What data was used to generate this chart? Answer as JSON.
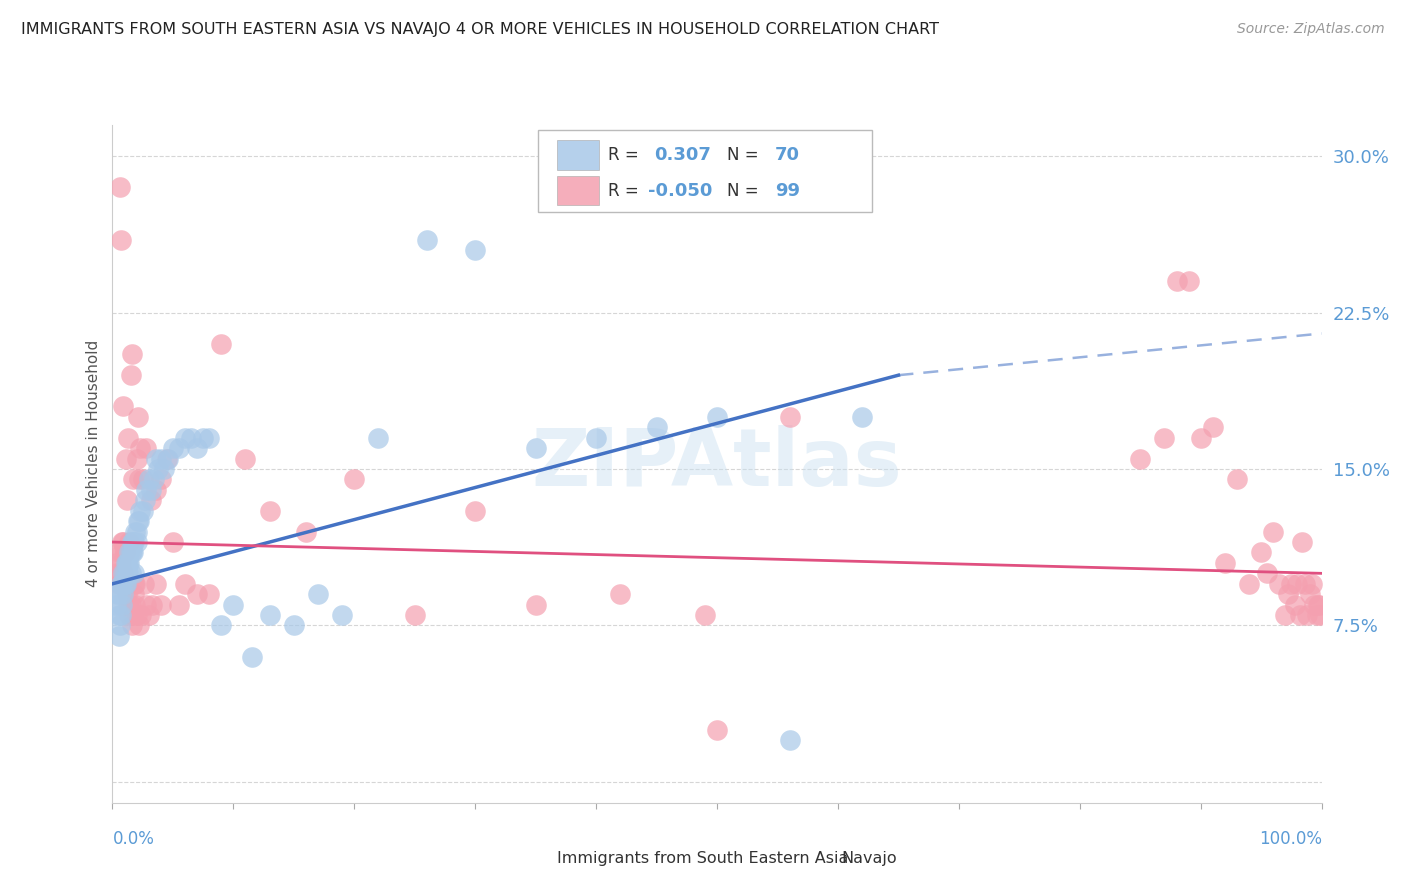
{
  "title": "IMMIGRANTS FROM SOUTH EASTERN ASIA VS NAVAJO 4 OR MORE VEHICLES IN HOUSEHOLD CORRELATION CHART",
  "source": "Source: ZipAtlas.com",
  "ylabel": "4 or more Vehicles in Household",
  "ytick_vals": [
    0.0,
    0.075,
    0.15,
    0.225,
    0.3
  ],
  "ytick_labels": [
    "",
    "7.5%",
    "15.0%",
    "22.5%",
    "30.0%"
  ],
  "xlim": [
    0.0,
    1.0
  ],
  "ylim": [
    -0.01,
    0.315
  ],
  "blue_color": "#a8c8e8",
  "pink_color": "#f4a0b0",
  "blue_line_color": "#4472c4",
  "pink_line_color": "#e05080",
  "title_color": "#222222",
  "axis_label_color": "#5b9bd5",
  "blue_trend": [
    0.0,
    0.095,
    0.65,
    0.195
  ],
  "blue_dashed": [
    0.65,
    0.195,
    1.0,
    0.215
  ],
  "pink_trend": [
    0.0,
    0.115,
    1.0,
    0.1
  ],
  "blue_x": [
    0.003,
    0.004,
    0.005,
    0.005,
    0.006,
    0.006,
    0.007,
    0.007,
    0.008,
    0.008,
    0.009,
    0.009,
    0.01,
    0.01,
    0.011,
    0.011,
    0.012,
    0.012,
    0.013,
    0.013,
    0.014,
    0.014,
    0.015,
    0.015,
    0.016,
    0.016,
    0.017,
    0.017,
    0.018,
    0.018,
    0.019,
    0.02,
    0.02,
    0.021,
    0.022,
    0.023,
    0.025,
    0.027,
    0.028,
    0.03,
    0.032,
    0.034,
    0.036,
    0.038,
    0.04,
    0.043,
    0.046,
    0.05,
    0.055,
    0.06,
    0.065,
    0.07,
    0.075,
    0.08,
    0.09,
    0.1,
    0.115,
    0.13,
    0.15,
    0.17,
    0.19,
    0.22,
    0.26,
    0.3,
    0.35,
    0.4,
    0.45,
    0.5,
    0.56,
    0.62
  ],
  "blue_y": [
    0.085,
    0.09,
    0.07,
    0.08,
    0.075,
    0.09,
    0.08,
    0.095,
    0.085,
    0.095,
    0.09,
    0.1,
    0.095,
    0.1,
    0.095,
    0.105,
    0.1,
    0.105,
    0.1,
    0.105,
    0.11,
    0.105,
    0.11,
    0.1,
    0.115,
    0.11,
    0.11,
    0.115,
    0.1,
    0.115,
    0.12,
    0.115,
    0.12,
    0.125,
    0.125,
    0.13,
    0.13,
    0.135,
    0.14,
    0.145,
    0.14,
    0.145,
    0.155,
    0.15,
    0.155,
    0.15,
    0.155,
    0.16,
    0.16,
    0.165,
    0.165,
    0.16,
    0.165,
    0.165,
    0.075,
    0.085,
    0.06,
    0.08,
    0.075,
    0.09,
    0.08,
    0.165,
    0.26,
    0.255,
    0.16,
    0.165,
    0.17,
    0.175,
    0.02,
    0.175
  ],
  "pink_x": [
    0.003,
    0.004,
    0.005,
    0.005,
    0.006,
    0.006,
    0.007,
    0.007,
    0.008,
    0.008,
    0.009,
    0.009,
    0.01,
    0.01,
    0.011,
    0.012,
    0.013,
    0.014,
    0.015,
    0.016,
    0.017,
    0.018,
    0.019,
    0.02,
    0.021,
    0.022,
    0.023,
    0.025,
    0.028,
    0.032,
    0.036,
    0.04,
    0.045,
    0.05,
    0.055,
    0.06,
    0.07,
    0.08,
    0.09,
    0.11,
    0.13,
    0.16,
    0.2,
    0.25,
    0.3,
    0.35,
    0.42,
    0.5,
    0.49,
    0.56,
    0.85,
    0.87,
    0.88,
    0.89,
    0.9,
    0.91,
    0.92,
    0.93,
    0.94,
    0.95,
    0.955,
    0.96,
    0.965,
    0.97,
    0.972,
    0.975,
    0.978,
    0.98,
    0.982,
    0.984,
    0.986,
    0.988,
    0.99,
    0.992,
    0.994,
    0.996,
    0.997,
    0.998,
    0.999,
    0.009,
    0.01,
    0.011,
    0.012,
    0.013,
    0.014,
    0.015,
    0.016,
    0.017,
    0.018,
    0.019,
    0.02,
    0.022,
    0.024,
    0.026,
    0.028,
    0.03,
    0.033,
    0.036,
    0.04
  ],
  "pink_y": [
    0.105,
    0.1,
    0.095,
    0.11,
    0.1,
    0.285,
    0.26,
    0.105,
    0.11,
    0.115,
    0.18,
    0.115,
    0.11,
    0.11,
    0.155,
    0.135,
    0.165,
    0.115,
    0.195,
    0.205,
    0.145,
    0.095,
    0.095,
    0.155,
    0.175,
    0.145,
    0.16,
    0.145,
    0.16,
    0.135,
    0.14,
    0.145,
    0.155,
    0.115,
    0.085,
    0.095,
    0.09,
    0.09,
    0.21,
    0.155,
    0.13,
    0.12,
    0.145,
    0.08,
    0.13,
    0.085,
    0.09,
    0.025,
    0.08,
    0.175,
    0.155,
    0.165,
    0.24,
    0.24,
    0.165,
    0.17,
    0.105,
    0.145,
    0.095,
    0.11,
    0.1,
    0.12,
    0.095,
    0.08,
    0.09,
    0.095,
    0.085,
    0.095,
    0.08,
    0.115,
    0.095,
    0.08,
    0.09,
    0.095,
    0.085,
    0.08,
    0.085,
    0.085,
    0.08,
    0.1,
    0.095,
    0.095,
    0.09,
    0.085,
    0.08,
    0.085,
    0.075,
    0.08,
    0.09,
    0.085,
    0.08,
    0.075,
    0.08,
    0.095,
    0.085,
    0.08,
    0.085,
    0.095,
    0.085
  ]
}
